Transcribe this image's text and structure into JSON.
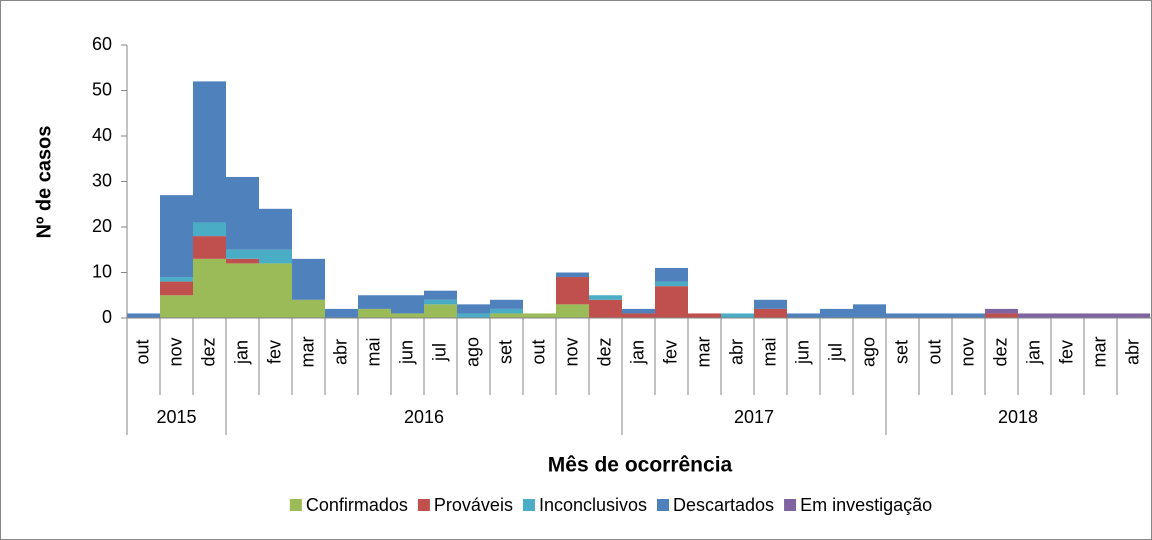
{
  "chart_data": {
    "type": "stacked-bar",
    "y_label": "Nº de casos",
    "x_label": "Mês de ocorrência",
    "categories": [
      "out",
      "nov",
      "dez",
      "jan",
      "fev",
      "mar",
      "abr",
      "mai",
      "jun",
      "jul",
      "ago",
      "set",
      "out",
      "nov",
      "dez",
      "jan",
      "fev",
      "mar",
      "abr",
      "mai",
      "jun",
      "jul",
      "ago",
      "set",
      "out",
      "nov",
      "dez",
      "jan",
      "fev",
      "mar",
      "abr"
    ],
    "year_groups": [
      {
        "label": "2015",
        "span": 3
      },
      {
        "label": "2016",
        "span": 12
      },
      {
        "label": "2017",
        "span": 8
      },
      {
        "label": "2018",
        "span": 8
      }
    ],
    "series": [
      {
        "name": "Confirmados",
        "color": "#9bbb59",
        "values": [
          0,
          5,
          13,
          12,
          12,
          4,
          0,
          2,
          1,
          3,
          0,
          1,
          1,
          3,
          0,
          0,
          0,
          0,
          0,
          0,
          0,
          0,
          0,
          0,
          0,
          0,
          0,
          0,
          0,
          0,
          0
        ]
      },
      {
        "name": "Prováveis",
        "color": "#c0504d",
        "values": [
          0,
          3,
          5,
          1,
          0,
          0,
          0,
          0,
          0,
          0,
          0,
          0,
          0,
          6,
          4,
          1,
          7,
          1,
          0,
          2,
          0,
          0,
          0,
          0,
          0,
          0,
          1,
          0,
          0,
          0,
          0
        ]
      },
      {
        "name": "Inconclusivos",
        "color": "#4bacc6",
        "values": [
          0,
          1,
          3,
          2,
          3,
          0,
          0,
          0,
          0,
          1,
          1,
          1,
          0,
          0,
          1,
          0,
          1,
          0,
          1,
          0,
          0,
          0,
          0,
          0,
          0,
          0,
          0,
          0,
          0,
          0,
          0
        ]
      },
      {
        "name": "Descartados",
        "color": "#4f81bd",
        "values": [
          1,
          18,
          31,
          16,
          9,
          9,
          2,
          3,
          4,
          2,
          2,
          2,
          0,
          1,
          0,
          1,
          3,
          0,
          0,
          2,
          1,
          2,
          3,
          1,
          1,
          1,
          0,
          0,
          0,
          0,
          0
        ]
      },
      {
        "name": "Em investigação",
        "color": "#8064a2",
        "values": [
          0,
          0,
          0,
          0,
          0,
          0,
          0,
          0,
          0,
          0,
          0,
          0,
          0,
          0,
          0,
          0,
          0,
          0,
          0,
          0,
          0,
          0,
          0,
          0,
          0,
          0,
          1,
          1,
          1,
          1,
          1
        ]
      }
    ],
    "ylim": [
      0,
      60
    ],
    "yticks": [
      0,
      10,
      20,
      30,
      40,
      50,
      60
    ],
    "grid": false,
    "legend": "bottom"
  }
}
